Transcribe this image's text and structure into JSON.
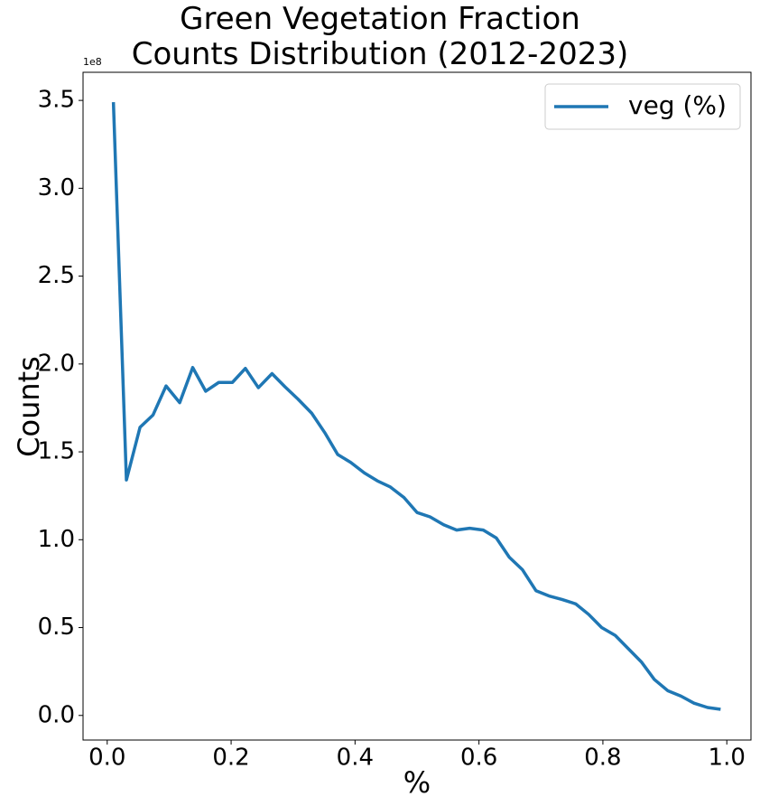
{
  "chart_data": {
    "type": "line",
    "title": "Green Vegetation Fraction\nCounts Distribution (2012-2023)",
    "xlabel": "%",
    "ylabel": "Counts",
    "offset_text": "1e8",
    "x": [
      0.01,
      0.031,
      0.053,
      0.074,
      0.095,
      0.117,
      0.138,
      0.159,
      0.18,
      0.202,
      0.223,
      0.244,
      0.266,
      0.287,
      0.308,
      0.33,
      0.351,
      0.372,
      0.393,
      0.415,
      0.436,
      0.457,
      0.479,
      0.5,
      0.521,
      0.543,
      0.564,
      0.585,
      0.607,
      0.628,
      0.649,
      0.67,
      0.692,
      0.713,
      0.734,
      0.756,
      0.777,
      0.798,
      0.82,
      0.841,
      0.862,
      0.883,
      0.905,
      0.926,
      0.947,
      0.969,
      0.99
    ],
    "series": [
      {
        "name": "veg (%)",
        "color": "#1f77b4",
        "values": [
          3.49,
          1.34,
          1.64,
          1.71,
          1.875,
          1.78,
          1.98,
          1.845,
          1.895,
          1.895,
          1.975,
          1.865,
          1.945,
          1.87,
          1.8,
          1.72,
          1.61,
          1.485,
          1.44,
          1.38,
          1.335,
          1.3,
          1.24,
          1.155,
          1.13,
          1.085,
          1.055,
          1.065,
          1.055,
          1.01,
          0.9,
          0.83,
          0.71,
          0.68,
          0.66,
          0.635,
          0.575,
          0.5,
          0.455,
          0.38,
          0.305,
          0.205,
          0.14,
          0.11,
          0.07,
          0.045,
          0.035
        ]
      }
    ],
    "xlim": [
      -0.039,
      1.039
    ],
    "ylim": [
      -0.14,
      3.66
    ],
    "xticks": [
      {
        "value": 0,
        "label": "0.0"
      },
      0.2,
      0.4,
      0.6,
      0.8,
      {
        "value": 1,
        "label": "1.0"
      }
    ],
    "yticks": [
      {
        "value": 0,
        "label": "0.0"
      },
      0.5,
      {
        "value": 1,
        "label": "1.0"
      },
      1.5,
      {
        "value": 2,
        "label": "2.0"
      },
      2.5,
      {
        "value": 3,
        "label": "3.0"
      },
      3.5
    ],
    "legend": "upper right",
    "grid": false
  }
}
